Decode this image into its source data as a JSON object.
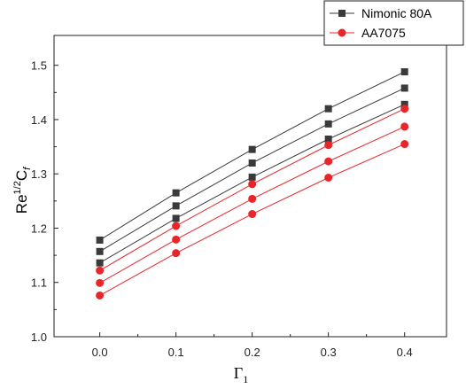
{
  "chart_data": {
    "type": "line",
    "title": "",
    "xlabel": {
      "main": "Γ",
      "sub": "1"
    },
    "ylabel": {
      "base": "Re",
      "sup": "1/2",
      "c": "C",
      "sub": "f"
    },
    "x": [
      0.0,
      0.1,
      0.2,
      0.3,
      0.4
    ],
    "x_tick_labels": [
      "0.0",
      "0.1",
      "0.2",
      "0.3",
      "0.4"
    ],
    "y_tick_labels": [
      "1.0",
      "1.1",
      "1.2",
      "1.3",
      "1.4",
      "1.5"
    ],
    "y_ticks": [
      1.0,
      1.1,
      1.2,
      1.3,
      1.4,
      1.5
    ],
    "xlim": [
      -0.06,
      0.455
    ],
    "ylim": [
      1.0,
      1.555
    ],
    "grid": false,
    "legend_position": "top-right",
    "legend": [
      {
        "label": "Nimonic 80A",
        "color": "#3a3a3a",
        "marker": "square"
      },
      {
        "label": "AA7075",
        "color": "#e8262a",
        "marker": "circle"
      }
    ],
    "series": [
      {
        "group": "Nimonic 80A",
        "color": "#3a3a3a",
        "marker": "square",
        "values": [
          1.178,
          1.265,
          1.345,
          1.42,
          1.488
        ]
      },
      {
        "group": "Nimonic 80A",
        "color": "#3a3a3a",
        "marker": "square",
        "values": [
          1.157,
          1.241,
          1.32,
          1.392,
          1.458
        ]
      },
      {
        "group": "Nimonic 80A",
        "color": "#3a3a3a",
        "marker": "square",
        "values": [
          1.136,
          1.218,
          1.294,
          1.364,
          1.428
        ]
      },
      {
        "group": "AA7075",
        "color": "#e8262a",
        "marker": "circle",
        "values": [
          1.122,
          1.204,
          1.281,
          1.353,
          1.42
        ]
      },
      {
        "group": "AA7075",
        "color": "#e8262a",
        "marker": "circle",
        "values": [
          1.099,
          1.179,
          1.254,
          1.323,
          1.387
        ]
      },
      {
        "group": "AA7075",
        "color": "#e8262a",
        "marker": "circle",
        "values": [
          1.076,
          1.154,
          1.226,
          1.293,
          1.355
        ]
      }
    ]
  }
}
